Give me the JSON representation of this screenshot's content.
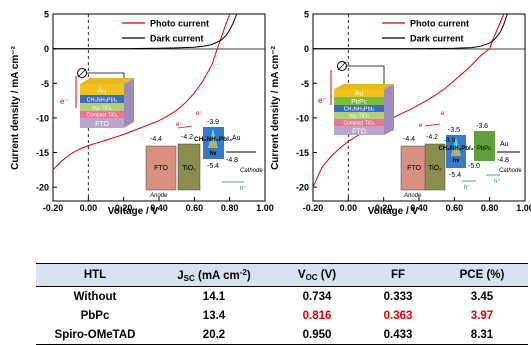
{
  "chart_data": [
    {
      "type": "line",
      "title": "",
      "xlabel": "Voltage / V",
      "ylabel": "Current density / mA cm⁻²",
      "xlim": [
        -0.2,
        1.0
      ],
      "ylim": [
        -22,
        5
      ],
      "xticks": [
        -0.2,
        0.0,
        0.2,
        0.4,
        0.6,
        0.8,
        1.0
      ],
      "xtick_labels": [
        "-0.20",
        "0.00",
        "0.20",
        "0.40",
        "0.60",
        "0.80",
        "1.00"
      ],
      "yticks": [
        5,
        0,
        -5,
        -10,
        -15,
        -20
      ],
      "ytick_labels": [
        "5",
        "0",
        "-5",
        "-10",
        "-15",
        "-20"
      ],
      "grid": false,
      "legend": "top-center",
      "series": [
        {
          "name": "Photo current",
          "color": "#e00000",
          "x": [
            -0.2,
            -0.15,
            -0.1,
            -0.05,
            0.0,
            0.05,
            0.1,
            0.15,
            0.2,
            0.25,
            0.3,
            0.35,
            0.4,
            0.45,
            0.5,
            0.55,
            0.6,
            0.65,
            0.7,
            0.73,
            0.76,
            0.78,
            0.8
          ],
          "y": [
            -17.5,
            -16.2,
            -15.2,
            -14.5,
            -14.0,
            -13.6,
            -13.2,
            -12.8,
            -12.4,
            -11.9,
            -11.4,
            -10.9,
            -10.4,
            -9.7,
            -8.9,
            -7.8,
            -6.4,
            -4.6,
            -2.3,
            0.0,
            2.2,
            3.6,
            5.0
          ]
        },
        {
          "name": "Dark current",
          "color": "#000000",
          "x": [
            -0.2,
            0.0,
            0.2,
            0.4,
            0.5,
            0.6,
            0.65,
            0.7,
            0.75,
            0.78,
            0.8,
            0.82,
            0.84
          ],
          "y": [
            0.0,
            0.0,
            0.0,
            0.05,
            0.1,
            0.2,
            0.35,
            0.6,
            1.2,
            1.9,
            2.7,
            3.7,
            5.0
          ]
        }
      ],
      "inset_device": {
        "layers": [
          "Au",
          "CH₃NH₃PbI₃",
          "mp-TiO₂",
          "Compact TiO₂",
          "FTO"
        ],
        "electron_label": "e⁻"
      },
      "inset_energy": {
        "levels": [
          "-4.4",
          "-4.2",
          "-3.9",
          "-4.8",
          "-5.4"
        ],
        "labels": [
          "FTO",
          "TiO₂",
          "CH₃NH₃PbI₃",
          "hv",
          "Au",
          "Cathode",
          "Anode"
        ],
        "carriers": [
          "e⁻",
          "e⁻",
          "h⁺"
        ]
      }
    },
    {
      "type": "line",
      "title": "",
      "xlabel": "Voltage / V",
      "ylabel": "Current density / mA cm⁻²",
      "xlim": [
        -0.2,
        1.0
      ],
      "ylim": [
        -22,
        5
      ],
      "xticks": [
        -0.2,
        0.0,
        0.2,
        0.4,
        0.6,
        0.8,
        1.0
      ],
      "xtick_labels": [
        "-0.20",
        "0.00",
        "0.20",
        "0.40",
        "0.60",
        "0.80",
        "1.00"
      ],
      "yticks": [
        5,
        0,
        -5,
        -10,
        -15,
        -20
      ],
      "ytick_labels": [
        "5",
        "0",
        "-5",
        "-10",
        "-15",
        "-20"
      ],
      "grid": false,
      "legend": "top-center",
      "series": [
        {
          "name": "Photo current",
          "color": "#e00000",
          "x": [
            -0.2,
            -0.15,
            -0.1,
            -0.05,
            0.0,
            0.05,
            0.1,
            0.15,
            0.2,
            0.25,
            0.3,
            0.35,
            0.4,
            0.45,
            0.5,
            0.55,
            0.6,
            0.65,
            0.7,
            0.75,
            0.8,
            0.82,
            0.85,
            0.88
          ],
          "y": [
            -20.0,
            -17.2,
            -15.6,
            -14.4,
            -13.4,
            -12.6,
            -11.9,
            -11.2,
            -10.6,
            -10.0,
            -9.4,
            -8.8,
            -8.1,
            -7.4,
            -6.6,
            -5.7,
            -4.6,
            -3.5,
            -2.3,
            -1.0,
            0.0,
            1.4,
            3.2,
            5.0
          ]
        },
        {
          "name": "Dark current",
          "color": "#000000",
          "x": [
            -0.2,
            0.0,
            0.2,
            0.4,
            0.6,
            0.7,
            0.75,
            0.8,
            0.83,
            0.86,
            0.88,
            0.9
          ],
          "y": [
            0.0,
            0.0,
            0.0,
            0.0,
            0.05,
            0.15,
            0.35,
            0.8,
            1.4,
            2.4,
            3.5,
            5.0
          ]
        }
      ],
      "inset_device": {
        "layers": [
          "Au",
          "PbPc",
          "CH₃NH₃PbI₃",
          "mp-TiO₂",
          "Compact TiO₂",
          "FTO"
        ],
        "electron_label": "e⁻"
      },
      "inset_energy": {
        "levels": [
          "-4.4",
          "-4.2",
          "-3.5",
          "-3.9",
          "-3.6",
          "-4.8",
          "-5.4",
          "-5.0"
        ],
        "labels": [
          "FTO",
          "TiO₂",
          "CH₃NH₃PbI₃",
          "hv",
          "PbPc",
          "Au",
          "Cathode",
          "Anode"
        ],
        "carriers": [
          "e⁻",
          "e⁻",
          "h⁺",
          "h⁺"
        ]
      }
    },
    {
      "type": "table",
      "headers": [
        "HTL",
        "J",
        "SC",
        " (mA cm",
        "-2",
        ")",
        "V",
        "OC",
        " (V)",
        "FF",
        "PCE (%)"
      ],
      "rows": [
        [
          "Without",
          "14.1",
          "0.734",
          "0.333",
          "3.45"
        ],
        [
          "PbPc",
          "13.4",
          "0.816",
          "0.363",
          "3.97"
        ],
        [
          "Spiro-OMeTAD",
          "20.2",
          "0.950",
          "0.433",
          "8.31"
        ]
      ],
      "highlight_row": 1,
      "highlight_color": "#e00000"
    }
  ]
}
